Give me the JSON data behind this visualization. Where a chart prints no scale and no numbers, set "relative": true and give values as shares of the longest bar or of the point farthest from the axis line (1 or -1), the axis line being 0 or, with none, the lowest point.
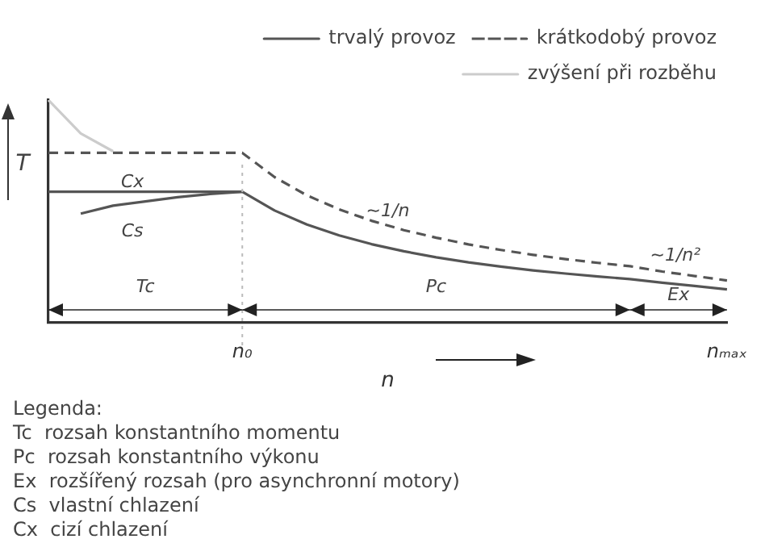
{
  "chart_data": {
    "type": "line",
    "relative": true,
    "ylabel": "T",
    "xlabel": "n",
    "legend": "top right",
    "marker": "none",
    "grid": false,
    "categories": [
      null,
      null,
      null,
      null,
      null,
      null,
      "n₀",
      null,
      null,
      null,
      null,
      null,
      null,
      null,
      null,
      null,
      null,
      null,
      null,
      null,
      null,
      "nₘₐₓ"
    ],
    "series": [
      {
        "name": "trvalý provoz",
        "color": "#555555",
        "line_style": "solid",
        "values": [
          0.588,
          0.588,
          0.588,
          0.588,
          0.588,
          0.588,
          0.588,
          0.504,
          0.441,
          0.392,
          0.353,
          0.321,
          0.294,
          0.271,
          0.252,
          0.235,
          0.221,
          0.208,
          0.196,
          0.18,
          0.165,
          0.15
        ]
      },
      {
        "color": "#555555",
        "line_style": "solid",
        "values": [
          null,
          0.49,
          0.526,
          0.545,
          0.564,
          0.578,
          0.588,
          null,
          null,
          null,
          null,
          null,
          null,
          null,
          null,
          null,
          null,
          null,
          null,
          null,
          null,
          null
        ]
      },
      {
        "name": "krátkodobý provoz",
        "color": "#555555",
        "line_style": "dashed",
        "values": [
          0.763,
          0.763,
          0.763,
          0.763,
          0.763,
          0.763,
          0.763,
          0.654,
          0.572,
          0.509,
          0.458,
          0.416,
          0.382,
          0.352,
          0.327,
          0.305,
          0.286,
          0.269,
          0.254,
          0.23,
          0.21,
          0.19
        ]
      },
      {
        "name": "zvýšení při rozběhu",
        "color": "#cccccc",
        "line_style": "solid",
        "values": [
          1,
          0.85,
          0.77,
          null,
          null,
          null,
          null,
          null,
          null,
          null,
          null,
          null,
          null,
          null,
          null,
          null,
          null,
          null,
          null,
          null,
          null,
          null
        ]
      }
    ],
    "ref_lines": [
      {
        "axis": "x",
        "value": "n₀",
        "color": "#bbbbbb",
        "line_style": "dotted"
      }
    ],
    "annotations": [
      "Cx",
      "Cs",
      "~1/n",
      "~1/n²",
      "Tc",
      "Pc",
      "Ex",
      "Legenda:",
      "Tc  rozsah konstantního momentu",
      "Pc  rozsah konstantního výkonu",
      "Ex  rozšířený rozsah (pro asynchronní motory)",
      "Cs  vlastní chlazení",
      "Cx  cizí chlazení"
    ]
  }
}
